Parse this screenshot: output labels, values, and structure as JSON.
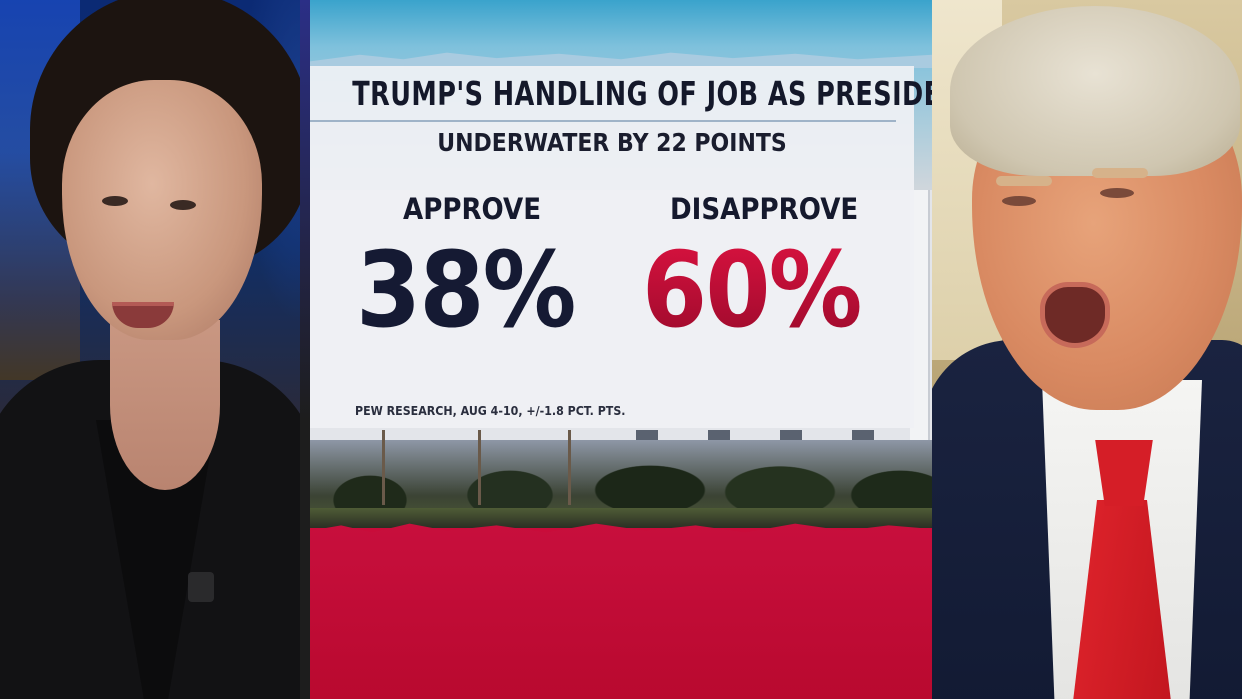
{
  "graphic": {
    "title": "TRUMP'S HANDLING OF JOB AS PRESIDENT",
    "subtitle": "UNDERWATER BY 22 POINTS",
    "approve": {
      "label": "APPROVE",
      "value": "38%"
    },
    "disapprove": {
      "label": "DISAPPROVE",
      "value": "60%"
    },
    "source": "PEW RESEARCH, AUG 4-10, +/-1.8 PCT. PTS."
  },
  "colors": {
    "approve": "#151a33",
    "disapprove": "#c20f39",
    "background_red": "#c80f3d"
  }
}
